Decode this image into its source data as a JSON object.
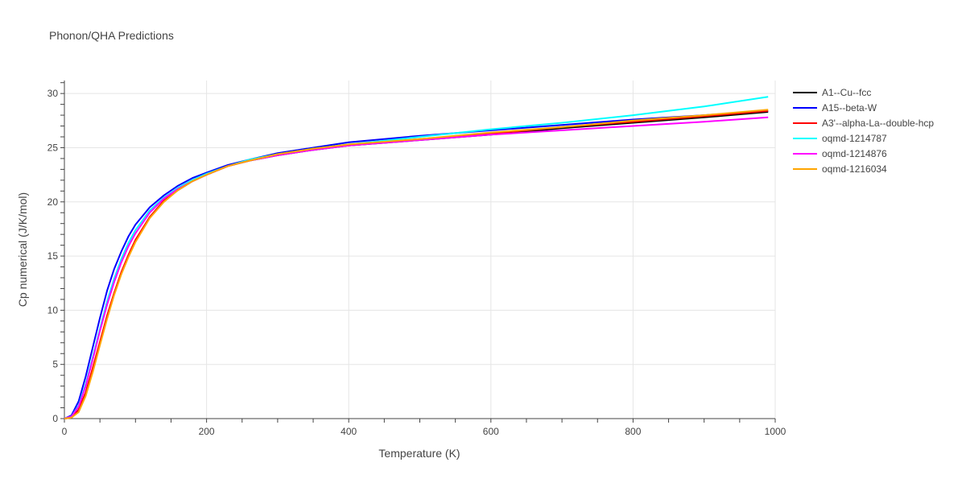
{
  "title": "Phonon/QHA Predictions",
  "chart_data": {
    "type": "line",
    "title": "Phonon/QHA Predictions",
    "xlabel": "Temperature (K)",
    "ylabel": "Cp numerical (J/K/mol)",
    "xlim": [
      0,
      1000
    ],
    "ylim": [
      0,
      31.2
    ],
    "xticks": [
      0,
      200,
      400,
      600,
      800,
      1000
    ],
    "yticks": [
      0,
      5,
      10,
      15,
      20,
      25,
      30
    ],
    "grid": true,
    "legend_position": "top-right outside",
    "x": [
      0,
      10,
      20,
      30,
      40,
      50,
      60,
      70,
      80,
      90,
      100,
      120,
      140,
      160,
      180,
      200,
      230,
      260,
      300,
      350,
      400,
      500,
      600,
      700,
      800,
      900,
      990
    ],
    "series": [
      {
        "name": "A1--Cu--fcc",
        "color": "#000000",
        "values": [
          0,
          0.1,
          0.8,
          2.4,
          4.6,
          7.0,
          9.4,
          11.5,
          13.4,
          15.0,
          16.4,
          18.6,
          20.1,
          21.1,
          21.9,
          22.5,
          23.3,
          23.8,
          24.3,
          24.8,
          25.2,
          25.7,
          26.2,
          26.8,
          27.3,
          27.8,
          28.3
        ]
      },
      {
        "name": "A15--beta-W",
        "color": "#0000ff",
        "values": [
          0,
          0.3,
          1.6,
          3.9,
          6.6,
          9.3,
          11.8,
          13.8,
          15.4,
          16.8,
          17.9,
          19.5,
          20.6,
          21.5,
          22.2,
          22.7,
          23.4,
          23.9,
          24.5,
          25.0,
          25.5,
          26.1,
          26.6,
          27.1,
          27.6,
          28.0,
          28.4
        ]
      },
      {
        "name": "A3'--alpha-La--double-hcp",
        "color": "#ff0000",
        "values": [
          0,
          0.1,
          0.8,
          2.4,
          4.7,
          7.1,
          9.5,
          11.6,
          13.5,
          15.1,
          16.5,
          18.6,
          20.1,
          21.1,
          21.9,
          22.5,
          23.3,
          23.8,
          24.4,
          24.9,
          25.2,
          25.8,
          26.3,
          26.9,
          27.4,
          27.9,
          28.4
        ]
      },
      {
        "name": "oqmd-1214787",
        "color": "#00ffff",
        "values": [
          0,
          0.2,
          1.2,
          3.2,
          5.7,
          8.3,
          10.8,
          12.9,
          14.7,
          16.2,
          17.4,
          19.2,
          20.4,
          21.3,
          22.0,
          22.6,
          23.3,
          23.9,
          24.4,
          24.9,
          25.3,
          26.0,
          26.7,
          27.3,
          28.0,
          28.8,
          29.7
        ]
      },
      {
        "name": "oqmd-1214876",
        "color": "#ff00ff",
        "values": [
          0,
          0.2,
          1.1,
          3.0,
          5.5,
          8.1,
          10.5,
          12.6,
          14.4,
          15.9,
          17.1,
          19.0,
          20.3,
          21.2,
          21.9,
          22.5,
          23.3,
          23.8,
          24.3,
          24.8,
          25.2,
          25.7,
          26.2,
          26.6,
          27.0,
          27.4,
          27.8
        ]
      },
      {
        "name": "oqmd-1216034",
        "color": "#ffa500",
        "values": [
          0,
          0.1,
          0.6,
          2.1,
          4.3,
          6.8,
          9.2,
          11.4,
          13.3,
          14.9,
          16.3,
          18.5,
          20.0,
          21.1,
          21.9,
          22.5,
          23.3,
          23.8,
          24.4,
          24.9,
          25.3,
          25.8,
          26.4,
          26.9,
          27.5,
          28.0,
          28.5
        ]
      }
    ]
  }
}
